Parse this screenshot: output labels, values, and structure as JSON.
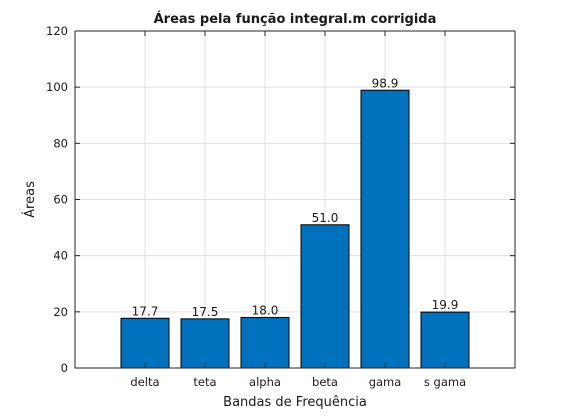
{
  "chart_data": {
    "type": "bar",
    "title": "Áreas pela função integral.m corrigida",
    "xlabel": "Bandas de Frequência",
    "ylabel": "Áreas",
    "categories": [
      "delta",
      "teta",
      "alpha",
      "beta",
      "gama",
      "s gama"
    ],
    "values": [
      17.7,
      17.5,
      18.0,
      51.0,
      98.9,
      19.9
    ],
    "data_labels": [
      "17.7",
      "17.5",
      "18.0",
      "51.0",
      "98.9",
      "19.9"
    ],
    "ylim": [
      0,
      120
    ],
    "yticks": [
      0,
      20,
      40,
      60,
      80,
      100,
      120
    ],
    "grid": true,
    "bar_color": "#0072BD",
    "bar_edge_color": "#000000"
  }
}
